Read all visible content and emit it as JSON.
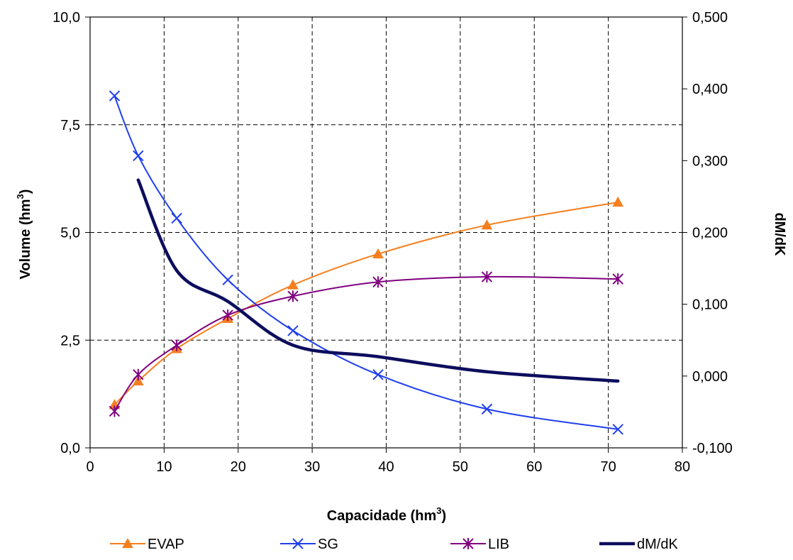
{
  "chart_data": {
    "type": "line",
    "title": "",
    "xlabel": "Capacidade (hm",
    "xlabel_sup": "3",
    "xlabel_suffix": ")",
    "ylabel": "Volume (hm",
    "ylabel_sup": "3",
    "ylabel_suffix": ")",
    "y2label": "dM/dK",
    "xlim": [
      0,
      80
    ],
    "ylim": [
      0,
      10
    ],
    "y2lim": [
      -0.1,
      0.5
    ],
    "x_ticks": [
      "0",
      "10",
      "20",
      "30",
      "40",
      "50",
      "60",
      "70",
      "80"
    ],
    "y_ticks": [
      "0,0",
      "2,5",
      "5,0",
      "7,5",
      "10,0"
    ],
    "y2_ticks": [
      "-0,100",
      "0,000",
      "0,100",
      "0,200",
      "0,300",
      "0,400",
      "0,500"
    ],
    "grid": true,
    "legend_position": "bottom",
    "series": [
      {
        "name": "EVAP",
        "axis": "left",
        "color": "#F57F1F",
        "marker": "triangle",
        "x": [
          3.3,
          6.5,
          11.7,
          18.6,
          27.4,
          38.9,
          53.6,
          71.3
        ],
        "values": [
          1.0,
          1.55,
          2.3,
          3.0,
          3.78,
          4.5,
          5.17,
          5.7
        ]
      },
      {
        "name": "SG",
        "axis": "left",
        "color": "#1F3FEF",
        "marker": "x",
        "x": [
          3.3,
          6.5,
          11.7,
          18.6,
          27.4,
          38.9,
          53.6,
          71.3
        ],
        "values": [
          8.17,
          6.78,
          5.33,
          3.9,
          2.72,
          1.7,
          0.9,
          0.43
        ]
      },
      {
        "name": "LIB",
        "axis": "left",
        "color": "#800080",
        "marker": "asterisk",
        "x": [
          3.3,
          6.5,
          11.7,
          18.6,
          27.4,
          38.9,
          53.6,
          71.3
        ],
        "values": [
          0.85,
          1.7,
          2.38,
          3.08,
          3.52,
          3.85,
          3.97,
          3.92
        ]
      },
      {
        "name": "dM/dK",
        "axis": "right",
        "color": "#0D0D5E",
        "marker": "none",
        "x": [
          6.5,
          11.7,
          18.6,
          27.4,
          38.9,
          53.6,
          71.3
        ],
        "values": [
          0.273,
          0.147,
          0.104,
          0.043,
          0.027,
          0.006,
          -0.007
        ]
      }
    ]
  }
}
